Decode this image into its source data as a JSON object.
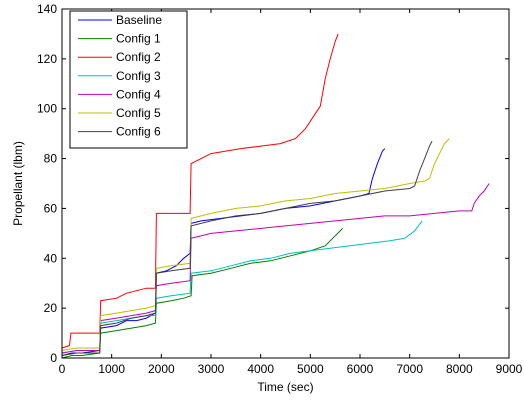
{
  "chart_data": {
    "type": "line",
    "xlabel": "Time (sec)",
    "ylabel": "Propellant (lbm)",
    "xlim": [
      0,
      9000
    ],
    "ylim": [
      0,
      140
    ],
    "xticks": [
      "0",
      "1000",
      "2000",
      "3000",
      "4000",
      "5000",
      "6000",
      "7000",
      "8000",
      "9000"
    ],
    "yticks": [
      "0",
      "20",
      "40",
      "60",
      "80",
      "100",
      "120",
      "140"
    ],
    "grid": false,
    "legend_position": "top-left",
    "series": [
      {
        "name": "Baseline",
        "color": "#0000ff",
        "points": [
          [
            0,
            1
          ],
          [
            200,
            2
          ],
          [
            400,
            2
          ],
          [
            760,
            3
          ],
          [
            780,
            12
          ],
          [
            1100,
            13
          ],
          [
            1300,
            15
          ],
          [
            1500,
            15
          ],
          [
            1700,
            16
          ],
          [
            1880,
            18
          ],
          [
            1900,
            34
          ],
          [
            2100,
            35
          ],
          [
            2300,
            37
          ],
          [
            2450,
            40
          ],
          [
            2580,
            42
          ],
          [
            2600,
            54
          ],
          [
            2800,
            55
          ],
          [
            3200,
            56
          ],
          [
            3600,
            57
          ],
          [
            4000,
            58
          ],
          [
            4500,
            60
          ],
          [
            5000,
            61
          ],
          [
            5500,
            63
          ],
          [
            6000,
            65
          ],
          [
            6180,
            66
          ],
          [
            6250,
            72
          ],
          [
            6350,
            78
          ],
          [
            6450,
            83
          ],
          [
            6500,
            84
          ]
        ]
      },
      {
        "name": "Config 1",
        "color": "#008000",
        "points": [
          [
            0,
            0
          ],
          [
            200,
            1
          ],
          [
            400,
            1
          ],
          [
            760,
            2
          ],
          [
            780,
            10
          ],
          [
            1100,
            11
          ],
          [
            1400,
            12
          ],
          [
            1700,
            13
          ],
          [
            1880,
            14
          ],
          [
            1900,
            22
          ],
          [
            2200,
            23
          ],
          [
            2450,
            24
          ],
          [
            2600,
            25
          ],
          [
            2620,
            33
          ],
          [
            3000,
            34
          ],
          [
            3400,
            36
          ],
          [
            3800,
            38
          ],
          [
            4200,
            39
          ],
          [
            4600,
            41
          ],
          [
            5000,
            43
          ],
          [
            5300,
            45
          ],
          [
            5450,
            48
          ],
          [
            5550,
            50
          ],
          [
            5650,
            52
          ]
        ]
      },
      {
        "name": "Config 2",
        "color": "#ff0000",
        "points": [
          [
            0,
            4
          ],
          [
            150,
            5
          ],
          [
            180,
            10
          ],
          [
            400,
            10
          ],
          [
            760,
            10
          ],
          [
            780,
            23
          ],
          [
            1100,
            24
          ],
          [
            1300,
            26
          ],
          [
            1500,
            27
          ],
          [
            1700,
            28
          ],
          [
            1880,
            28
          ],
          [
            1900,
            58
          ],
          [
            2400,
            58
          ],
          [
            2580,
            58
          ],
          [
            2600,
            78
          ],
          [
            2800,
            80
          ],
          [
            3000,
            82
          ],
          [
            3300,
            83
          ],
          [
            3600,
            84
          ],
          [
            4000,
            85
          ],
          [
            4400,
            86
          ],
          [
            4700,
            88
          ],
          [
            4900,
            92
          ],
          [
            5100,
            98
          ],
          [
            5200,
            101
          ],
          [
            5300,
            112
          ],
          [
            5400,
            120
          ],
          [
            5500,
            127
          ],
          [
            5560,
            130
          ]
        ]
      },
      {
        "name": "Config 3",
        "color": "#00bfbf",
        "points": [
          [
            0,
            2
          ],
          [
            300,
            3
          ],
          [
            760,
            3
          ],
          [
            780,
            14
          ],
          [
            1100,
            15
          ],
          [
            1400,
            16
          ],
          [
            1700,
            17
          ],
          [
            1880,
            17
          ],
          [
            1900,
            24
          ],
          [
            2200,
            25
          ],
          [
            2580,
            26
          ],
          [
            2600,
            34
          ],
          [
            3000,
            35
          ],
          [
            3400,
            37
          ],
          [
            3800,
            39
          ],
          [
            4200,
            40
          ],
          [
            4600,
            42
          ],
          [
            5000,
            43
          ],
          [
            5400,
            44
          ],
          [
            5800,
            45
          ],
          [
            6200,
            46
          ],
          [
            6600,
            47
          ],
          [
            6900,
            48
          ],
          [
            7100,
            51
          ],
          [
            7250,
            55
          ]
        ]
      },
      {
        "name": "Config 4",
        "color": "#bf00bf",
        "points": [
          [
            0,
            2
          ],
          [
            300,
            3
          ],
          [
            760,
            3
          ],
          [
            780,
            15
          ],
          [
            1100,
            16
          ],
          [
            1400,
            17
          ],
          [
            1700,
            18
          ],
          [
            1880,
            19
          ],
          [
            1900,
            29
          ],
          [
            2200,
            30
          ],
          [
            2580,
            31
          ],
          [
            2600,
            48
          ],
          [
            3000,
            50
          ],
          [
            3500,
            51
          ],
          [
            4000,
            52
          ],
          [
            4500,
            53
          ],
          [
            5000,
            54
          ],
          [
            5500,
            55
          ],
          [
            6000,
            56
          ],
          [
            6500,
            57
          ],
          [
            7000,
            57
          ],
          [
            7500,
            58
          ],
          [
            8000,
            59
          ],
          [
            8250,
            59
          ],
          [
            8300,
            62
          ],
          [
            8400,
            65
          ],
          [
            8500,
            67
          ],
          [
            8600,
            70
          ]
        ]
      },
      {
        "name": "Config 5",
        "color": "#bfbf00",
        "points": [
          [
            0,
            3
          ],
          [
            300,
            4
          ],
          [
            760,
            4
          ],
          [
            780,
            17
          ],
          [
            1100,
            18
          ],
          [
            1400,
            19
          ],
          [
            1700,
            20
          ],
          [
            1880,
            21
          ],
          [
            1900,
            36
          ],
          [
            2200,
            37
          ],
          [
            2580,
            38
          ],
          [
            2600,
            56
          ],
          [
            3000,
            58
          ],
          [
            3500,
            60
          ],
          [
            4000,
            61
          ],
          [
            4500,
            63
          ],
          [
            5000,
            64
          ],
          [
            5500,
            66
          ],
          [
            6000,
            67
          ],
          [
            6500,
            68
          ],
          [
            7000,
            70
          ],
          [
            7300,
            71
          ],
          [
            7400,
            72
          ],
          [
            7500,
            78
          ],
          [
            7600,
            82
          ],
          [
            7700,
            86
          ],
          [
            7800,
            88
          ]
        ]
      },
      {
        "name": "Config 6",
        "color": "#404040",
        "points": [
          [
            0,
            1
          ],
          [
            300,
            2
          ],
          [
            760,
            2
          ],
          [
            780,
            13
          ],
          [
            1100,
            14
          ],
          [
            1400,
            16
          ],
          [
            1700,
            17
          ],
          [
            1880,
            18
          ],
          [
            1900,
            34
          ],
          [
            2200,
            35
          ],
          [
            2580,
            36
          ],
          [
            2600,
            53
          ],
          [
            3000,
            55
          ],
          [
            3500,
            57
          ],
          [
            4000,
            58
          ],
          [
            4500,
            60
          ],
          [
            5000,
            62
          ],
          [
            5500,
            63
          ],
          [
            6000,
            65
          ],
          [
            6500,
            67
          ],
          [
            7000,
            68
          ],
          [
            7100,
            69
          ],
          [
            7200,
            75
          ],
          [
            7300,
            80
          ],
          [
            7400,
            85
          ],
          [
            7450,
            87
          ]
        ]
      }
    ]
  }
}
